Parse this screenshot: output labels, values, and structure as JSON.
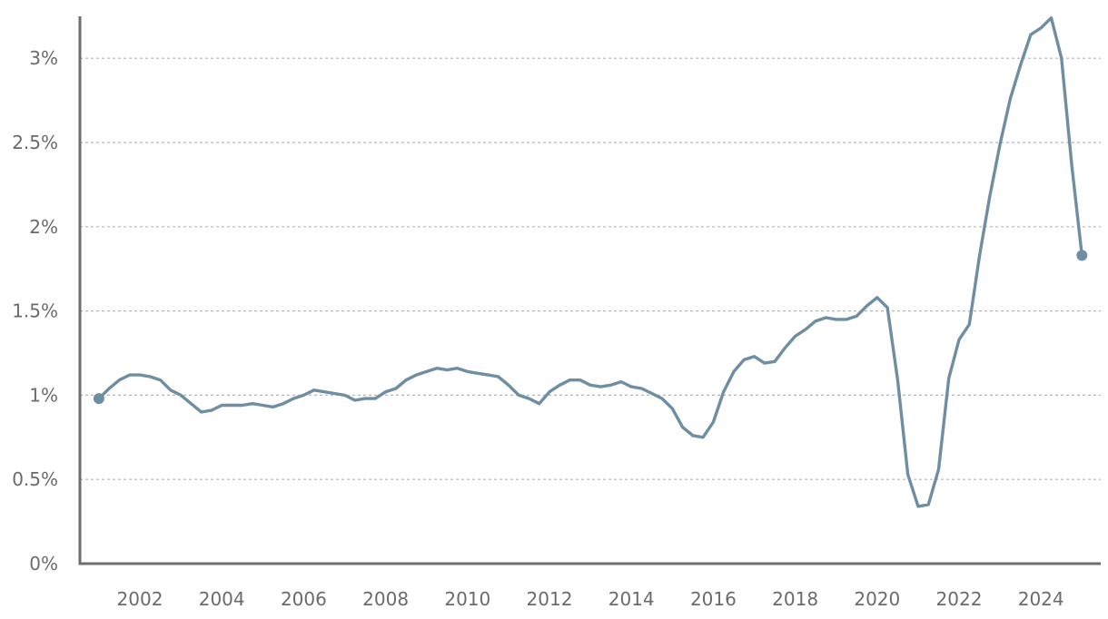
{
  "chart_data": {
    "type": "line",
    "title": "",
    "xlabel": "",
    "ylabel": "",
    "xlim": [
      2000.6,
      2025.7
    ],
    "ylim": [
      0,
      3.25
    ],
    "x_ticks": [
      2002,
      2004,
      2006,
      2008,
      2010,
      2012,
      2014,
      2016,
      2018,
      2020,
      2022,
      2024
    ],
    "x_tick_labels": [
      "2002",
      "2004",
      "2006",
      "2008",
      "2010",
      "2012",
      "2014",
      "2016",
      "2018",
      "2020",
      "2022",
      "2024"
    ],
    "y_ticks": [
      0,
      0.5,
      1,
      1.5,
      2,
      2.5,
      3
    ],
    "y_tick_labels": [
      "0%",
      "0.5%",
      "1%",
      "1.5%",
      "2%",
      "2.5%",
      "3%"
    ],
    "grid": "horizontal-dashed",
    "series": [
      {
        "color": "#6f8ea1",
        "points": [
          [
            2001.0,
            0.98
          ],
          [
            2001.25,
            1.04
          ],
          [
            2001.5,
            1.09
          ],
          [
            2001.75,
            1.12
          ],
          [
            2002.0,
            1.12
          ],
          [
            2002.25,
            1.11
          ],
          [
            2002.5,
            1.09
          ],
          [
            2002.75,
            1.03
          ],
          [
            2003.0,
            1.0
          ],
          [
            2003.25,
            0.95
          ],
          [
            2003.5,
            0.9
          ],
          [
            2003.75,
            0.91
          ],
          [
            2004.0,
            0.94
          ],
          [
            2004.25,
            0.94
          ],
          [
            2004.5,
            0.94
          ],
          [
            2004.75,
            0.95
          ],
          [
            2005.0,
            0.94
          ],
          [
            2005.25,
            0.93
          ],
          [
            2005.5,
            0.95
          ],
          [
            2005.75,
            0.98
          ],
          [
            2006.0,
            1.0
          ],
          [
            2006.25,
            1.03
          ],
          [
            2006.5,
            1.02
          ],
          [
            2006.75,
            1.01
          ],
          [
            2007.0,
            1.0
          ],
          [
            2007.25,
            0.97
          ],
          [
            2007.5,
            0.98
          ],
          [
            2007.75,
            0.98
          ],
          [
            2008.0,
            1.02
          ],
          [
            2008.25,
            1.04
          ],
          [
            2008.5,
            1.09
          ],
          [
            2008.75,
            1.12
          ],
          [
            2009.0,
            1.14
          ],
          [
            2009.25,
            1.16
          ],
          [
            2009.5,
            1.15
          ],
          [
            2009.75,
            1.16
          ],
          [
            2010.0,
            1.14
          ],
          [
            2010.25,
            1.13
          ],
          [
            2010.5,
            1.12
          ],
          [
            2010.75,
            1.11
          ],
          [
            2011.0,
            1.06
          ],
          [
            2011.25,
            1.0
          ],
          [
            2011.5,
            0.98
          ],
          [
            2011.75,
            0.95
          ],
          [
            2012.0,
            1.02
          ],
          [
            2012.25,
            1.06
          ],
          [
            2012.5,
            1.09
          ],
          [
            2012.75,
            1.09
          ],
          [
            2013.0,
            1.06
          ],
          [
            2013.25,
            1.05
          ],
          [
            2013.5,
            1.06
          ],
          [
            2013.75,
            1.08
          ],
          [
            2014.0,
            1.05
          ],
          [
            2014.25,
            1.04
          ],
          [
            2014.5,
            1.01
          ],
          [
            2014.75,
            0.98
          ],
          [
            2015.0,
            0.92
          ],
          [
            2015.25,
            0.81
          ],
          [
            2015.5,
            0.76
          ],
          [
            2015.75,
            0.75
          ],
          [
            2016.0,
            0.84
          ],
          [
            2016.25,
            1.02
          ],
          [
            2016.5,
            1.14
          ],
          [
            2016.75,
            1.21
          ],
          [
            2017.0,
            1.23
          ],
          [
            2017.25,
            1.19
          ],
          [
            2017.5,
            1.2
          ],
          [
            2017.75,
            1.28
          ],
          [
            2018.0,
            1.35
          ],
          [
            2018.25,
            1.39
          ],
          [
            2018.5,
            1.44
          ],
          [
            2018.75,
            1.46
          ],
          [
            2019.0,
            1.45
          ],
          [
            2019.25,
            1.45
          ],
          [
            2019.5,
            1.47
          ],
          [
            2019.75,
            1.53
          ],
          [
            2020.0,
            1.58
          ],
          [
            2020.25,
            1.52
          ],
          [
            2020.5,
            1.09
          ],
          [
            2020.75,
            0.53
          ],
          [
            2021.0,
            0.34
          ],
          [
            2021.25,
            0.35
          ],
          [
            2021.5,
            0.56
          ],
          [
            2021.75,
            1.1
          ],
          [
            2022.0,
            1.33
          ],
          [
            2022.25,
            1.42
          ],
          [
            2022.5,
            1.83
          ],
          [
            2022.75,
            2.18
          ],
          [
            2023.0,
            2.49
          ],
          [
            2023.25,
            2.76
          ],
          [
            2023.5,
            2.96
          ],
          [
            2023.75,
            3.14
          ],
          [
            2024.0,
            3.18
          ],
          [
            2024.25,
            3.24
          ],
          [
            2024.5,
            3.0
          ],
          [
            2024.75,
            2.37
          ],
          [
            2025.0,
            1.83
          ]
        ],
        "markers": [
          [
            2001.0,
            0.98
          ],
          [
            2025.0,
            1.83
          ]
        ]
      }
    ]
  }
}
